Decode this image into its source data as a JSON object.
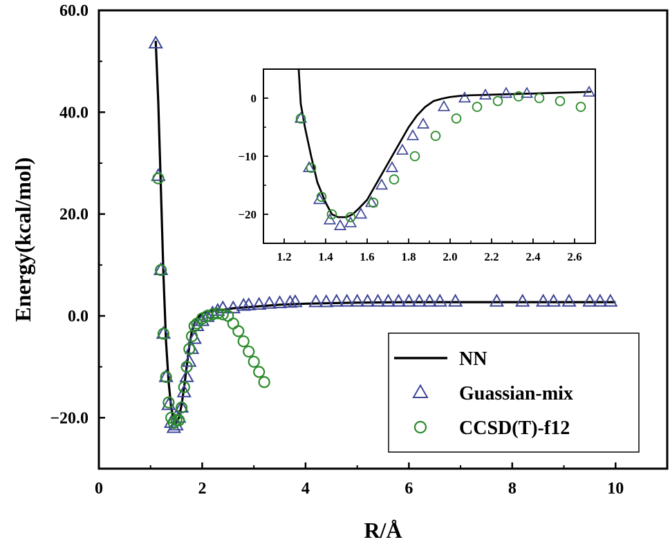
{
  "chart_data": [
    {
      "type": "line+scatter",
      "xlabel": "R/Å",
      "ylabel": "Energy(kcal/mol)",
      "xlim": [
        0,
        11
      ],
      "ylim": [
        -30,
        60
      ],
      "xticks": [
        0,
        2,
        4,
        6,
        8,
        10
      ],
      "xtick_labels": [
        "0",
        "2",
        "4",
        "6",
        "8",
        "10"
      ],
      "yticks": [
        -20,
        0,
        20,
        40,
        60
      ],
      "ytick_labels": [
        "−20.0",
        "0.0",
        "20.0",
        "40.0",
        "60.0"
      ],
      "grid": false,
      "legend_position": "bottom-right",
      "series": [
        {
          "name": "NN",
          "kind": "line",
          "color": "#000000",
          "x": [
            1.1,
            1.15,
            1.2,
            1.25,
            1.3,
            1.35,
            1.4,
            1.45,
            1.5,
            1.55,
            1.6,
            1.65,
            1.7,
            1.75,
            1.8,
            1.85,
            1.9,
            1.95,
            2.0,
            2.1,
            2.2,
            2.4,
            2.6,
            3.0,
            3.5,
            4.0,
            5.0,
            6.0,
            7.0,
            8.0,
            9.0,
            10.0
          ],
          "y": [
            54,
            42,
            25,
            8,
            -5,
            -13,
            -18,
            -20.5,
            -21,
            -20,
            -17.5,
            -14,
            -10,
            -6,
            -3,
            -1.5,
            -0.5,
            0,
            0.5,
            0.7,
            1.0,
            1.2,
            1.5,
            1.8,
            2.2,
            2.4,
            2.6,
            2.7,
            2.7,
            2.7,
            2.7,
            2.7
          ]
        },
        {
          "name": "Guassian-mix",
          "kind": "scatter",
          "marker": "triangle",
          "color": "#3d4596",
          "x": [
            1.1,
            1.15,
            1.2,
            1.25,
            1.3,
            1.35,
            1.4,
            1.45,
            1.5,
            1.55,
            1.6,
            1.65,
            1.7,
            1.75,
            1.8,
            1.85,
            1.9,
            2.0,
            2.1,
            2.2,
            2.3,
            2.4,
            2.6,
            2.8,
            2.9,
            3.1,
            3.3,
            3.5,
            3.7,
            3.8,
            4.2,
            4.4,
            4.6,
            4.8,
            5.0,
            5.2,
            5.4,
            5.6,
            5.8,
            6.0,
            6.2,
            6.4,
            6.6,
            6.9,
            7.7,
            8.2,
            8.6,
            8.8,
            9.1,
            9.5,
            9.7,
            9.9
          ],
          "y": [
            53.5,
            27.5,
            9,
            -3.5,
            -12,
            -17.5,
            -21,
            -22,
            -21.5,
            -20,
            -18,
            -15,
            -12,
            -9,
            -6.5,
            -4.5,
            -2,
            -1,
            -0.2,
            0.5,
            1.0,
            1.5,
            1.5,
            2.0,
            2.1,
            2.2,
            2.4,
            2.5,
            2.6,
            2.7,
            2.7,
            2.7,
            2.8,
            2.8,
            2.8,
            2.8,
            2.8,
            2.8,
            2.8,
            2.8,
            2.8,
            2.8,
            2.8,
            2.8,
            2.8,
            2.8,
            2.8,
            2.8,
            2.8,
            2.8,
            2.8,
            2.8
          ]
        },
        {
          "name": "CCSD(T)-f12",
          "kind": "scatter",
          "marker": "circle",
          "color": "#2a8a2a",
          "x": [
            1.15,
            1.2,
            1.25,
            1.3,
            1.35,
            1.4,
            1.45,
            1.5,
            1.55,
            1.6,
            1.65,
            1.7,
            1.75,
            1.8,
            1.85,
            1.9,
            2.0,
            2.1,
            2.2,
            2.3,
            2.4,
            2.5,
            2.6,
            2.7,
            2.8,
            2.9,
            3.0,
            3.1,
            3.2
          ],
          "y": [
            27,
            9,
            -3.5,
            -12,
            -17,
            -20,
            -21,
            -20.5,
            -20.5,
            -18,
            -14,
            -10,
            -6.5,
            -4,
            -2,
            -1.5,
            -0.5,
            0,
            0.3,
            0.5,
            0.3,
            0,
            -1.5,
            -3,
            -5,
            -7,
            -9,
            -11,
            -13
          ]
        }
      ]
    },
    {
      "type": "line+scatter",
      "inset": true,
      "xlim": [
        1.1,
        2.7
      ],
      "ylim": [
        -25,
        5
      ],
      "xticks": [
        1.2,
        1.4,
        1.6,
        1.8,
        2.0,
        2.2,
        2.4,
        2.6
      ],
      "xtick_labels": [
        "1.2",
        "1.4",
        "1.6",
        "1.8",
        "2.0",
        "2.2",
        "2.4",
        "2.6"
      ],
      "yticks": [
        -20,
        -10,
        0
      ],
      "ytick_labels": [
        "−20",
        "−10",
        "0"
      ],
      "series": [
        {
          "name": "NN",
          "kind": "line",
          "color": "#000000",
          "x": [
            1.27,
            1.28,
            1.3,
            1.33,
            1.36,
            1.4,
            1.43,
            1.46,
            1.5,
            1.53,
            1.56,
            1.6,
            1.64,
            1.68,
            1.72,
            1.76,
            1.8,
            1.84,
            1.88,
            1.92,
            1.96,
            2.0,
            2.05,
            2.1,
            2.2,
            2.3,
            2.4,
            2.5,
            2.6,
            2.68
          ],
          "y": [
            5,
            -1,
            -5,
            -10,
            -14.5,
            -18,
            -20,
            -20.5,
            -20.5,
            -20,
            -19,
            -17.5,
            -15,
            -12.5,
            -10,
            -7.5,
            -5,
            -3,
            -1.5,
            -0.5,
            -0.1,
            0.2,
            0.4,
            0.5,
            0.6,
            0.7,
            0.8,
            0.9,
            1.0,
            1.1
          ]
        },
        {
          "name": "Guassian-mix",
          "kind": "scatter",
          "marker": "triangle",
          "color": "#3d4596",
          "x": [
            1.28,
            1.32,
            1.37,
            1.42,
            1.47,
            1.52,
            1.57,
            1.62,
            1.67,
            1.72,
            1.77,
            1.82,
            1.87,
            1.97,
            2.07,
            2.17,
            2.27,
            2.37,
            2.67
          ],
          "y": [
            -3.5,
            -12,
            -17.5,
            -21,
            -22,
            -21.5,
            -20,
            -18,
            -15,
            -12,
            -9,
            -6.5,
            -4.5,
            -1.5,
            0,
            0.5,
            0.8,
            0.8,
            1.0
          ]
        },
        {
          "name": "CCSD(T)-f12",
          "kind": "scatter",
          "marker": "circle",
          "color": "#2a8a2a",
          "x": [
            1.28,
            1.33,
            1.38,
            1.43,
            1.52,
            1.63,
            1.73,
            1.83,
            1.93,
            2.03,
            2.13,
            2.23,
            2.33,
            2.43,
            2.53,
            2.63
          ],
          "y": [
            -3.5,
            -12,
            -17,
            -20,
            -20.5,
            -18,
            -14,
            -10,
            -6.5,
            -3.5,
            -1.5,
            -0.5,
            0.3,
            0,
            -0.5,
            -1.5
          ]
        }
      ]
    }
  ]
}
